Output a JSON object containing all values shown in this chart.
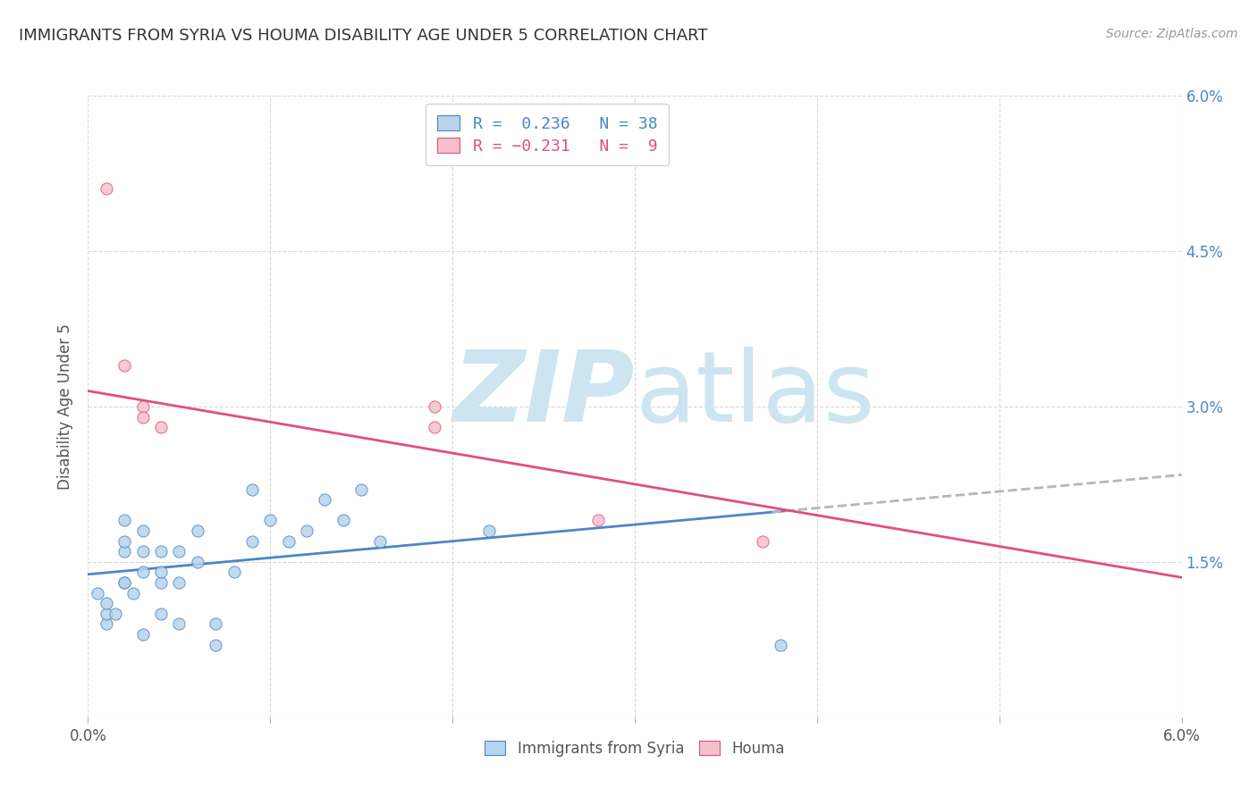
{
  "title": "IMMIGRANTS FROM SYRIA VS HOUMA DISABILITY AGE UNDER 5 CORRELATION CHART",
  "source": "Source: ZipAtlas.com",
  "ylabel": "Disability Age Under 5",
  "xlim": [
    0.0,
    0.06
  ],
  "ylim": [
    0.0,
    0.06
  ],
  "blue_R": 0.236,
  "blue_N": 38,
  "pink_R": -0.231,
  "pink_N": 9,
  "blue_color": "#b8d4ec",
  "blue_line_color": "#4a86c8",
  "pink_color": "#f5c0cc",
  "pink_line_color": "#e0507a",
  "blue_scatter_x": [
    0.0005,
    0.001,
    0.001,
    0.001,
    0.0015,
    0.002,
    0.002,
    0.002,
    0.002,
    0.002,
    0.0025,
    0.003,
    0.003,
    0.003,
    0.003,
    0.004,
    0.004,
    0.004,
    0.004,
    0.005,
    0.005,
    0.005,
    0.006,
    0.006,
    0.007,
    0.007,
    0.008,
    0.009,
    0.009,
    0.01,
    0.011,
    0.012,
    0.013,
    0.014,
    0.015,
    0.016,
    0.022,
    0.038
  ],
  "blue_scatter_y": [
    0.012,
    0.009,
    0.01,
    0.011,
    0.01,
    0.016,
    0.017,
    0.019,
    0.013,
    0.013,
    0.012,
    0.014,
    0.016,
    0.018,
    0.008,
    0.016,
    0.013,
    0.014,
    0.01,
    0.016,
    0.013,
    0.009,
    0.015,
    0.018,
    0.007,
    0.009,
    0.014,
    0.017,
    0.022,
    0.019,
    0.017,
    0.018,
    0.021,
    0.019,
    0.022,
    0.017,
    0.018,
    0.007
  ],
  "pink_scatter_x": [
    0.001,
    0.002,
    0.003,
    0.003,
    0.004,
    0.019,
    0.019,
    0.028,
    0.037
  ],
  "pink_scatter_y": [
    0.051,
    0.034,
    0.03,
    0.029,
    0.028,
    0.03,
    0.028,
    0.019,
    0.017
  ],
  "background_color": "#ffffff",
  "grid_color": "#d8d8d8",
  "watermark_color": "#cce5f0",
  "dashed_color": "#b0b8c0",
  "blue_line_intercept": 0.0138,
  "blue_line_slope": 0.16,
  "pink_line_intercept": 0.0315,
  "pink_line_slope": -0.3
}
